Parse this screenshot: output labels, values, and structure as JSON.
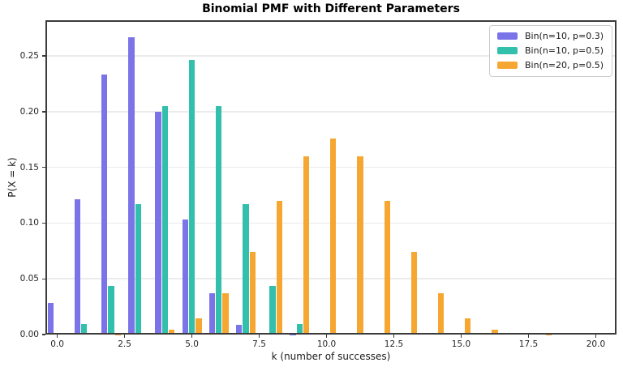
{
  "chart_data": {
    "type": "bar",
    "title": "Binomial PMF with Different Parameters",
    "xlabel": "k (number of successes)",
    "ylabel": "P(X = k)",
    "xlim": [
      -0.44,
      20.77
    ],
    "ylim": [
      0,
      0.282
    ],
    "xticks": [
      0.0,
      2.5,
      5.0,
      7.5,
      10.0,
      12.5,
      15.0,
      17.5,
      20.0
    ],
    "xtick_labels": [
      "0.0",
      "2.5",
      "5.0",
      "7.5",
      "10.0",
      "12.5",
      "15.0",
      "17.5",
      "20.0"
    ],
    "yticks": [
      0.0,
      0.05,
      0.1,
      0.15,
      0.2,
      0.25
    ],
    "ytick_labels": [
      "0.00",
      "0.05",
      "0.10",
      "0.15",
      "0.20",
      "0.25"
    ],
    "grid": "horizontal-only",
    "grid_color": "#ebebeb",
    "spine_color": "#3b3b3b",
    "legend_position": "upper-right",
    "bar_width": 0.22,
    "series": [
      {
        "name": "Bin(n=10, p=0.3)",
        "color": "#7b74e8",
        "offset": -0.25,
        "x": [
          0,
          1,
          2,
          3,
          4,
          5,
          6,
          7,
          8,
          9,
          10
        ],
        "values": [
          0.028248,
          0.121061,
          0.233474,
          0.266828,
          0.200121,
          0.102919,
          0.036757,
          0.009002,
          0.001447,
          0.000138,
          6e-06
        ]
      },
      {
        "name": "Bin(n=10, p=0.5)",
        "color": "#32bfac",
        "offset": 0,
        "x": [
          0,
          1,
          2,
          3,
          4,
          5,
          6,
          7,
          8,
          9,
          10
        ],
        "values": [
          0.000977,
          0.009766,
          0.043945,
          0.117188,
          0.205078,
          0.246094,
          0.205078,
          0.117188,
          0.043945,
          0.009766,
          0.000977
        ]
      },
      {
        "name": "Bin(n=20, p=0.5)",
        "color": "#f6a732",
        "offset": 0.25,
        "x": [
          0,
          1,
          2,
          3,
          4,
          5,
          6,
          7,
          8,
          9,
          10,
          11,
          12,
          13,
          14,
          15,
          16,
          17,
          18,
          19,
          20
        ],
        "values": [
          1e-06,
          1.9e-05,
          0.000181,
          0.001087,
          0.004621,
          0.014786,
          0.036964,
          0.073929,
          0.120134,
          0.160179,
          0.176197,
          0.160179,
          0.120134,
          0.073929,
          0.036964,
          0.014786,
          0.004621,
          0.001087,
          0.000181,
          1.9e-05,
          1e-06
        ]
      }
    ]
  }
}
